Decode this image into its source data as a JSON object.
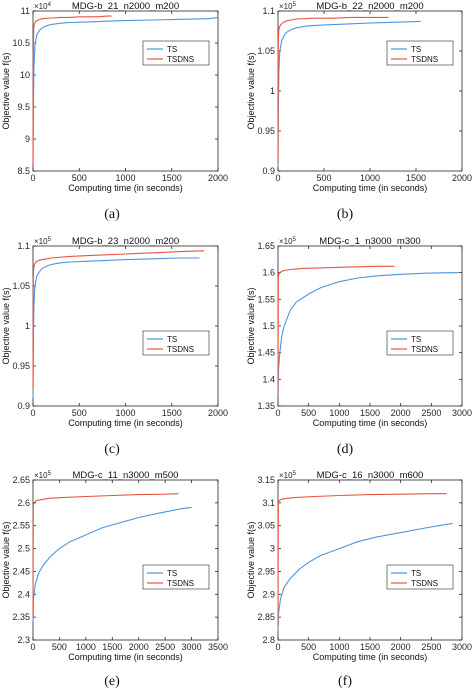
{
  "figure": {
    "captions": [
      "(a)",
      "(b)",
      "(c)",
      "(d)",
      "(e)",
      "(f)"
    ]
  },
  "chart_data": [
    {
      "type": "line",
      "title": "MDG-b_21_n2000_m200",
      "xlabel": "Computing time (in seconds)",
      "ylabel": "Objective value f(s)",
      "exponent": "×10^4",
      "xlim": [
        0,
        2000
      ],
      "ylim": [
        8.5,
        11
      ],
      "xticks": [
        0,
        500,
        1000,
        1500,
        2000
      ],
      "yticks": [
        8.5,
        9,
        9.5,
        10,
        10.5,
        11
      ],
      "yticklabels": [
        "8.5",
        "9",
        "9.5",
        "10",
        "10.5",
        "11"
      ],
      "legend": "top-right",
      "series": [
        {
          "name": "TS",
          "color": "#4f94e0",
          "x": [
            0,
            5,
            10,
            20,
            40,
            70,
            100,
            150,
            200,
            300,
            400,
            600,
            800,
            1000,
            1300,
            1600,
            1900,
            2000
          ],
          "y": [
            8.6,
            9.6,
            10.1,
            10.45,
            10.62,
            10.7,
            10.74,
            10.77,
            10.79,
            10.81,
            10.82,
            10.83,
            10.84,
            10.85,
            10.86,
            10.87,
            10.88,
            10.9
          ]
        },
        {
          "name": "TSDNS",
          "color": "#e8553f",
          "x": [
            0,
            3,
            8,
            15,
            30,
            60,
            100,
            200,
            300,
            400,
            500,
            600,
            700,
            800,
            850
          ],
          "y": [
            8.6,
            10.3,
            10.72,
            10.8,
            10.84,
            10.86,
            10.88,
            10.89,
            10.9,
            10.9,
            10.91,
            10.91,
            10.91,
            10.92,
            10.92
          ]
        }
      ]
    },
    {
      "type": "line",
      "title": "MDG-b_22_n2000_m200",
      "xlabel": "Computing time (in seconds)",
      "ylabel": "Objective value f(s)",
      "exponent": "×10^5",
      "xlim": [
        0,
        2000
      ],
      "ylim": [
        0.9,
        1.1
      ],
      "xticks": [
        0,
        500,
        1000,
        1500,
        2000
      ],
      "yticks": [
        0.9,
        0.95,
        1,
        1.05,
        1.1
      ],
      "yticklabels": [
        "0.9",
        "0.95",
        "1",
        "1.05",
        "1.1"
      ],
      "legend": "top-right",
      "series": [
        {
          "name": "TS",
          "color": "#4f94e0",
          "x": [
            0,
            5,
            10,
            20,
            40,
            70,
            100,
            150,
            200,
            300,
            400,
            600,
            800,
            1000,
            1300,
            1550
          ],
          "y": [
            0.905,
            0.99,
            1.025,
            1.05,
            1.063,
            1.07,
            1.074,
            1.077,
            1.079,
            1.081,
            1.082,
            1.083,
            1.084,
            1.085,
            1.086,
            1.087
          ]
        },
        {
          "name": "TSDNS",
          "color": "#e8553f",
          "x": [
            0,
            3,
            8,
            15,
            30,
            60,
            100,
            200,
            400,
            600,
            800,
            1000,
            1200
          ],
          "y": [
            0.91,
            1.06,
            1.075,
            1.08,
            1.083,
            1.086,
            1.088,
            1.09,
            1.091,
            1.091,
            1.092,
            1.092,
            1.092
          ]
        }
      ]
    },
    {
      "type": "line",
      "title": "MDG-b_23_n2000_m200",
      "xlabel": "Computing time (in seconds)",
      "ylabel": "Objective value f(s)",
      "exponent": "×10^5",
      "xlim": [
        0,
        2000
      ],
      "ylim": [
        0.9,
        1.1
      ],
      "xticks": [
        0,
        500,
        1000,
        1500,
        2000
      ],
      "yticks": [
        0.9,
        0.95,
        1,
        1.05,
        1.1
      ],
      "yticklabels": [
        "0.9",
        "0.95",
        "1",
        "1.05",
        "1.1"
      ],
      "legend": "center-right",
      "series": [
        {
          "name": "TS",
          "color": "#4f94e0",
          "x": [
            0,
            5,
            10,
            20,
            40,
            70,
            100,
            150,
            200,
            300,
            400,
            600,
            800,
            1000,
            1300,
            1600,
            1800
          ],
          "y": [
            0.91,
            0.99,
            1.025,
            1.05,
            1.062,
            1.068,
            1.072,
            1.075,
            1.077,
            1.079,
            1.08,
            1.081,
            1.082,
            1.083,
            1.084,
            1.085,
            1.085
          ]
        },
        {
          "name": "TSDNS",
          "color": "#e8553f",
          "x": [
            0,
            3,
            8,
            15,
            30,
            60,
            100,
            200,
            400,
            600,
            800,
            1000,
            1200,
            1400,
            1600,
            1850
          ],
          "y": [
            0.92,
            1.06,
            1.072,
            1.077,
            1.08,
            1.082,
            1.083,
            1.085,
            1.087,
            1.088,
            1.089,
            1.09,
            1.091,
            1.092,
            1.093,
            1.094
          ]
        }
      ]
    },
    {
      "type": "line",
      "title": "MDG-c_1_n3000_m300",
      "xlabel": "Computing time (in seconds)",
      "ylabel": "Objective value f(s)",
      "exponent": "×10^5",
      "xlim": [
        0,
        3000
      ],
      "ylim": [
        1.35,
        1.65
      ],
      "xticks": [
        0,
        500,
        1000,
        1500,
        2000,
        2500,
        3000
      ],
      "yticks": [
        1.35,
        1.4,
        1.45,
        1.5,
        1.55,
        1.6,
        1.65
      ],
      "yticklabels": [
        "1.35",
        "1.4",
        "1.45",
        "1.5",
        "1.55",
        "1.6",
        "1.65"
      ],
      "legend": "center-right",
      "series": [
        {
          "name": "TS",
          "color": "#4f94e0",
          "x": [
            0,
            10,
            30,
            60,
            100,
            200,
            300,
            500,
            700,
            1000,
            1300,
            1600,
            2000,
            2400,
            2800,
            2950
          ],
          "y": [
            1.37,
            1.42,
            1.45,
            1.48,
            1.5,
            1.53,
            1.545,
            1.56,
            1.572,
            1.583,
            1.59,
            1.594,
            1.597,
            1.599,
            1.6,
            1.6
          ]
        },
        {
          "name": "TSDNS",
          "color": "#e8553f",
          "x": [
            0,
            5,
            15,
            40,
            100,
            200,
            400,
            700,
            1000,
            1300,
            1600,
            1900
          ],
          "y": [
            1.37,
            1.59,
            1.598,
            1.601,
            1.604,
            1.606,
            1.608,
            1.609,
            1.61,
            1.611,
            1.612,
            1.612
          ]
        }
      ]
    },
    {
      "type": "line",
      "title": "MDG-c_11_n3000_m500",
      "xlabel": "Computing time (in seconds)",
      "ylabel": "Objective value f(s)",
      "exponent": "×10^5",
      "xlim": [
        0,
        3500
      ],
      "ylim": [
        2.3,
        2.65
      ],
      "xticks": [
        0,
        500,
        1000,
        1500,
        2000,
        2500,
        3000,
        3500
      ],
      "yticks": [
        2.3,
        2.35,
        2.4,
        2.45,
        2.5,
        2.55,
        2.6,
        2.65
      ],
      "yticklabels": [
        "2.3",
        "2.35",
        "2.4",
        "2.45",
        "2.5",
        "2.55",
        "2.6",
        "2.65"
      ],
      "legend": "center-right",
      "series": [
        {
          "name": "TS",
          "color": "#4f94e0",
          "x": [
            0,
            10,
            40,
            100,
            200,
            350,
            500,
            700,
            1000,
            1300,
            1600,
            2000,
            2400,
            2800,
            3000
          ],
          "y": [
            2.34,
            2.39,
            2.42,
            2.445,
            2.465,
            2.485,
            2.5,
            2.515,
            2.53,
            2.545,
            2.555,
            2.568,
            2.578,
            2.587,
            2.59
          ]
        },
        {
          "name": "TSDNS",
          "color": "#e8553f",
          "x": [
            0,
            5,
            20,
            60,
            150,
            300,
            600,
            1000,
            1500,
            2000,
            2500,
            2750
          ],
          "y": [
            2.35,
            2.595,
            2.6,
            2.605,
            2.607,
            2.61,
            2.612,
            2.614,
            2.616,
            2.618,
            2.619,
            2.62
          ]
        }
      ]
    },
    {
      "type": "line",
      "title": "MDG-c_16_n3000_m600",
      "xlabel": "Computing time (in seconds)",
      "ylabel": "Objective value f(s)",
      "exponent": "×10^5",
      "xlim": [
        0,
        3000
      ],
      "ylim": [
        2.8,
        3.15
      ],
      "xticks": [
        0,
        500,
        1000,
        1500,
        2000,
        2500,
        3000
      ],
      "yticks": [
        2.8,
        2.85,
        2.9,
        2.95,
        3,
        3.05,
        3.1,
        3.15
      ],
      "yticklabels": [
        "2.8",
        "2.85",
        "2.9",
        "2.95",
        "3",
        "3.05",
        "3.1",
        "3.15"
      ],
      "legend": "center-right",
      "series": [
        {
          "name": "TS",
          "color": "#4f94e0",
          "x": [
            0,
            10,
            40,
            100,
            200,
            350,
            500,
            700,
            1000,
            1300,
            1600,
            2000,
            2400,
            2700,
            2850
          ],
          "y": [
            2.82,
            2.86,
            2.89,
            2.915,
            2.935,
            2.955,
            2.97,
            2.985,
            3.0,
            3.015,
            3.025,
            3.035,
            3.045,
            3.052,
            3.055
          ]
        },
        {
          "name": "TSDNS",
          "color": "#e8553f",
          "x": [
            0,
            5,
            20,
            60,
            150,
            300,
            600,
            1000,
            1500,
            2000,
            2500,
            2750
          ],
          "y": [
            2.83,
            3.1,
            3.105,
            3.108,
            3.11,
            3.112,
            3.114,
            3.116,
            3.118,
            3.119,
            3.12,
            3.12
          ]
        }
      ]
    }
  ]
}
